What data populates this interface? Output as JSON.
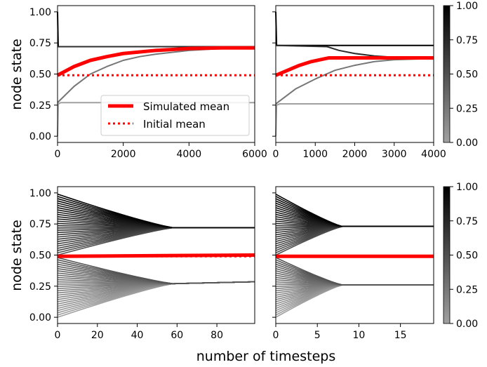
{
  "figure": {
    "ylabel": "node state",
    "xlabel": "number of timesteps"
  },
  "legend": {
    "items": [
      {
        "label": "Simulated mean",
        "color": "#ff0000",
        "style": "solid"
      },
      {
        "label": "Initial mean",
        "color": "#ff0000",
        "style": "dotted"
      }
    ],
    "placement": "lower-right"
  },
  "colorbar": {
    "ticks": [
      "0.00",
      "0.25",
      "0.50",
      "0.75",
      "1.00"
    ],
    "range": [
      0,
      1
    ],
    "colormap": [
      "#a0a0a0",
      "#000000"
    ]
  },
  "chart_data": [
    {
      "type": "line",
      "panel": "top-left",
      "xlim": [
        0,
        6000
      ],
      "ylim": [
        -0.05,
        1.05
      ],
      "xticks": [
        "0",
        "2000",
        "4000",
        "6000"
      ],
      "yticks": [
        "0.00",
        "0.25",
        "0.50",
        "0.75",
        "1.00"
      ],
      "series": [
        {
          "role": "node",
          "state": 1.0,
          "x": [
            0,
            20,
            100,
            6000
          ],
          "y": [
            1.0,
            0.72,
            0.72,
            0.72
          ]
        },
        {
          "role": "node",
          "state": 0.72,
          "x": [
            0,
            6000
          ],
          "y": [
            0.72,
            0.72
          ]
        },
        {
          "role": "node",
          "state": 0.27,
          "x": [
            0,
            500,
            1000,
            1500,
            2000,
            2500,
            3000,
            4000,
            5000,
            6000
          ],
          "y": [
            0.27,
            0.4,
            0.5,
            0.56,
            0.61,
            0.64,
            0.66,
            0.69,
            0.705,
            0.71
          ]
        },
        {
          "role": "node",
          "state": 0.0,
          "x": [
            0,
            20,
            100,
            6000
          ],
          "y": [
            0.0,
            0.26,
            0.27,
            0.27
          ]
        },
        {
          "role": "simulated_mean",
          "x": [
            0,
            500,
            1000,
            1500,
            2000,
            3000,
            4000,
            5000,
            6000
          ],
          "y": [
            0.49,
            0.56,
            0.61,
            0.64,
            0.665,
            0.69,
            0.705,
            0.71,
            0.71
          ]
        },
        {
          "role": "initial_mean",
          "x": [
            0,
            6000
          ],
          "y": [
            0.49,
            0.49
          ]
        }
      ]
    },
    {
      "type": "line",
      "panel": "top-right",
      "xlim": [
        0,
        4000
      ],
      "ylim": [
        -0.05,
        1.05
      ],
      "xticks": [
        "0",
        "1000",
        "2000",
        "3000",
        "4000"
      ],
      "yticks": [],
      "series": [
        {
          "role": "node",
          "state": 1.0,
          "x": [
            0,
            20,
            100,
            4000
          ],
          "y": [
            1.0,
            0.73,
            0.73,
            0.73
          ]
        },
        {
          "role": "node",
          "state": 0.73,
          "x": [
            0,
            1300,
            1600,
            2000,
            2500,
            3000,
            3200,
            4000
          ],
          "y": [
            0.73,
            0.72,
            0.69,
            0.665,
            0.645,
            0.635,
            0.63,
            0.63
          ]
        },
        {
          "role": "node",
          "state": 0.26,
          "x": [
            0,
            500,
            1000,
            1500,
            2000,
            2500,
            3000,
            3500,
            4000
          ],
          "y": [
            0.26,
            0.38,
            0.46,
            0.53,
            0.57,
            0.6,
            0.615,
            0.62,
            0.625
          ]
        },
        {
          "role": "node",
          "state": 0.0,
          "x": [
            0,
            20,
            100,
            4000
          ],
          "y": [
            0.0,
            0.25,
            0.26,
            0.26
          ]
        },
        {
          "role": "simulated_mean",
          "x": [
            0,
            300,
            600,
            900,
            1200,
            1350,
            4000
          ],
          "y": [
            0.49,
            0.53,
            0.57,
            0.6,
            0.62,
            0.63,
            0.63
          ]
        },
        {
          "role": "initial_mean",
          "x": [
            0,
            4000
          ],
          "y": [
            0.49,
            0.49
          ]
        }
      ]
    },
    {
      "type": "line",
      "panel": "bottom-left",
      "xlim": [
        0,
        99
      ],
      "ylim": [
        -0.05,
        1.05
      ],
      "xticks": [
        "0",
        "20",
        "40",
        "60",
        "80"
      ],
      "yticks": [
        "0.00",
        "0.25",
        "0.50",
        "0.75",
        "1.00"
      ],
      "fan": {
        "converge_x": 58,
        "upper": {
          "start_min": 0.5,
          "start_max": 0.99,
          "end": 0.72
        },
        "lower": {
          "start_min": 0.0,
          "start_max": 0.48,
          "end": 0.27,
          "drift_to": 0.285
        },
        "count_each": 28
      },
      "simulated_mean": {
        "x": [
          0,
          99
        ],
        "y": [
          0.49,
          0.5
        ]
      },
      "initial_mean": {
        "x": [
          0,
          99
        ],
        "y": [
          0.49,
          0.49
        ]
      }
    },
    {
      "type": "line",
      "panel": "bottom-right",
      "xlim": [
        0,
        19
      ],
      "ylim": [
        -0.05,
        1.05
      ],
      "xticks": [
        "0",
        "5",
        "10",
        "15"
      ],
      "yticks": [],
      "fan": {
        "converge_x": 8,
        "upper": {
          "start_min": 0.5,
          "start_max": 0.99,
          "end": 0.73
        },
        "lower": {
          "start_min": 0.0,
          "start_max": 0.48,
          "end": 0.26,
          "drift_to": 0.26
        },
        "count_each": 28
      },
      "simulated_mean": {
        "x": [
          0,
          19
        ],
        "y": [
          0.49,
          0.49
        ]
      },
      "initial_mean": {
        "x": [
          0,
          19
        ],
        "y": [
          0.49,
          0.49
        ]
      }
    }
  ]
}
